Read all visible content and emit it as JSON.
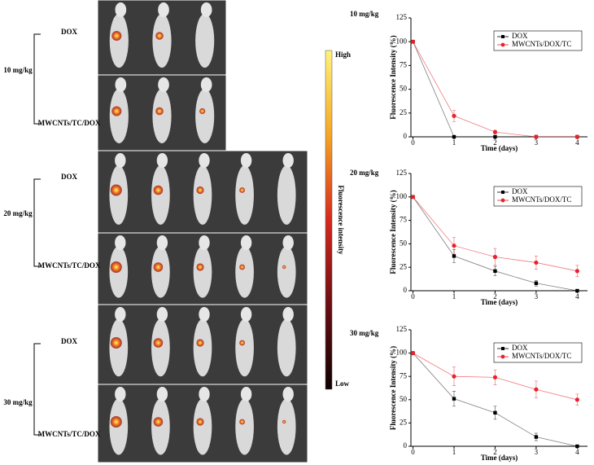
{
  "panel": {
    "groups": [
      {
        "dose": "10 mg/kg",
        "rows": [
          "DOX",
          "MWCNTs/TC/DOX"
        ]
      },
      {
        "dose": "20 mg/kg",
        "rows": [
          "DOX",
          "MWCNTs/TC/DOX"
        ]
      },
      {
        "dose": "30 mg/kg",
        "rows": [
          "DOX",
          "MWCNTs/TC/DOX"
        ]
      }
    ],
    "colorbar": {
      "high": "High",
      "low": "Low",
      "label": "Fluorescence intensity"
    }
  },
  "chart_data": [
    {
      "type": "line",
      "title": "10 mg/kg",
      "x_label": "Time (days)",
      "y_label": "Fluorescence Intensity (%)",
      "x": [
        0,
        1,
        2,
        3,
        4
      ],
      "xlim": [
        -0.05,
        4.25
      ],
      "xticks": [
        0,
        1,
        2,
        3,
        4
      ],
      "ylim": [
        0,
        125
      ],
      "yticks": [
        0,
        25,
        50,
        75,
        100,
        125
      ],
      "legend": "upper right",
      "series": [
        {
          "name": "DOX",
          "color": "#000000",
          "marker": "square",
          "values": [
            100,
            0,
            0,
            0,
            0
          ],
          "errors": [
            0,
            0,
            0,
            0,
            0
          ]
        },
        {
          "name": "MWCNTs/DOX/TC",
          "color": "#e8212a",
          "marker": "circle",
          "values": [
            100,
            22,
            5,
            0,
            0
          ],
          "errors": [
            0,
            6,
            2,
            0,
            0
          ]
        }
      ]
    },
    {
      "type": "line",
      "title": "20 mg/kg",
      "x_label": "Time (days)",
      "y_label": "Fluorescence Intensity (%)",
      "x": [
        0,
        1,
        2,
        3,
        4
      ],
      "xlim": [
        -0.05,
        4.25
      ],
      "xticks": [
        0,
        1,
        2,
        3,
        4
      ],
      "ylim": [
        0,
        125
      ],
      "yticks": [
        0,
        25,
        50,
        75,
        100,
        125
      ],
      "legend": "upper right",
      "series": [
        {
          "name": "DOX",
          "color": "#000000",
          "marker": "square",
          "values": [
            100,
            37,
            21,
            8,
            0
          ],
          "errors": [
            0,
            7,
            5,
            3,
            1
          ]
        },
        {
          "name": "MWCNTs/DOX/TC",
          "color": "#e8212a",
          "marker": "circle",
          "values": [
            100,
            48,
            36,
            30,
            21
          ],
          "errors": [
            0,
            9,
            9,
            7,
            6
          ]
        }
      ]
    },
    {
      "type": "line",
      "title": "30 mg/kg",
      "x_label": "Time (days)",
      "y_label": "Fluorescence Intensity (%)",
      "x": [
        0,
        1,
        2,
        3,
        4
      ],
      "xlim": [
        -0.05,
        4.25
      ],
      "xticks": [
        0,
        1,
        2,
        3,
        4
      ],
      "ylim": [
        0,
        125
      ],
      "yticks": [
        0,
        25,
        50,
        75,
        100,
        125
      ],
      "legend": "upper right",
      "series": [
        {
          "name": "DOX",
          "color": "#000000",
          "marker": "square",
          "values": [
            100,
            51,
            36,
            10,
            0
          ],
          "errors": [
            0,
            8,
            7,
            4,
            0
          ]
        },
        {
          "name": "MWCNTs/DOX/TC",
          "color": "#e8212a",
          "marker": "circle",
          "values": [
            100,
            75,
            74,
            61,
            50
          ],
          "errors": [
            0,
            10,
            8,
            9,
            6
          ]
        }
      ]
    }
  ]
}
